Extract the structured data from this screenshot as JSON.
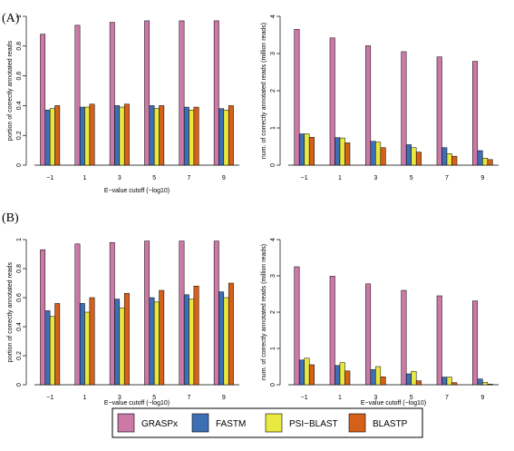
{
  "figure": {
    "panel_labels": [
      "(A)",
      "(B)"
    ],
    "legend": [
      {
        "name": "GRASPx",
        "color": "#cc79a7"
      },
      {
        "name": "FASTM",
        "color": "#3d6fb4"
      },
      {
        "name": "PSI−BLAST",
        "color": "#e8e841"
      },
      {
        "name": "BLASTP",
        "color": "#d5601a"
      }
    ]
  },
  "chart_data": [
    {
      "type": "bar",
      "panel": "(A)",
      "categories": [
        "−1",
        "1",
        "3",
        "5",
        "7",
        "9"
      ],
      "xlabel": "E−value cutoff (−log10)",
      "ylabel": "portion of correctly annotated reads",
      "ylim": [
        0,
        1
      ],
      "yticks": [
        "0",
        "0.2",
        "0.4",
        "0.6",
        "0.8",
        "1"
      ],
      "series": [
        {
          "name": "GRASPx",
          "values": [
            0.88,
            0.94,
            0.96,
            0.97,
            0.97,
            0.97
          ]
        },
        {
          "name": "FASTM",
          "values": [
            0.37,
            0.39,
            0.4,
            0.4,
            0.39,
            0.38
          ]
        },
        {
          "name": "PSI−BLAST",
          "values": [
            0.38,
            0.39,
            0.39,
            0.38,
            0.37,
            0.37
          ]
        },
        {
          "name": "BLASTP",
          "values": [
            0.4,
            0.41,
            0.41,
            0.4,
            0.39,
            0.4
          ]
        }
      ]
    },
    {
      "type": "bar",
      "panel": "(A)",
      "categories": [
        "−1",
        "1",
        "3",
        "5",
        "7",
        "9"
      ],
      "xlabel": "",
      "ylabel": "num. of correctly annotated reads (million reads)",
      "ylim": [
        0,
        4
      ],
      "yticks": [
        "0",
        "1",
        "2",
        "3",
        "4"
      ],
      "series": [
        {
          "name": "GRASPx",
          "values": [
            3.65,
            3.42,
            3.21,
            3.05,
            2.91,
            2.79
          ]
        },
        {
          "name": "FASTM",
          "values": [
            0.84,
            0.74,
            0.64,
            0.55,
            0.47,
            0.39
          ]
        },
        {
          "name": "PSI−BLAST",
          "values": [
            0.84,
            0.73,
            0.62,
            0.47,
            0.31,
            0.19
          ]
        },
        {
          "name": "BLASTP",
          "values": [
            0.75,
            0.6,
            0.47,
            0.35,
            0.24,
            0.15
          ]
        }
      ]
    },
    {
      "type": "bar",
      "panel": "(B)",
      "categories": [
        "−1",
        "1",
        "3",
        "5",
        "7",
        "9"
      ],
      "xlabel": "E−value cutoff (−log10)",
      "ylabel": "portion of correctly annotated reads",
      "ylim": [
        0,
        1
      ],
      "yticks": [
        "0",
        "0.2",
        "0.4",
        "0.6",
        "0.8",
        "1"
      ],
      "series": [
        {
          "name": "GRASPx",
          "values": [
            0.93,
            0.97,
            0.98,
            0.99,
            0.99,
            0.99
          ]
        },
        {
          "name": "FASTM",
          "values": [
            0.51,
            0.56,
            0.59,
            0.6,
            0.62,
            0.64
          ]
        },
        {
          "name": "PSI−BLAST",
          "values": [
            0.47,
            0.5,
            0.53,
            0.57,
            0.59,
            0.6
          ]
        },
        {
          "name": "BLASTP",
          "values": [
            0.56,
            0.6,
            0.63,
            0.65,
            0.68,
            0.7
          ]
        }
      ]
    },
    {
      "type": "bar",
      "panel": "(B)",
      "categories": [
        "−1",
        "1",
        "3",
        "5",
        "7",
        "9"
      ],
      "xlabel": "E−value cutoff (−log10)",
      "ylabel": "num. of correctly annotated reads (million reads)",
      "ylim": [
        0,
        4
      ],
      "yticks": [
        "0",
        "1",
        "2",
        "3",
        "4"
      ],
      "series": [
        {
          "name": "GRASPx",
          "values": [
            3.25,
            2.99,
            2.78,
            2.6,
            2.45,
            2.31
          ]
        },
        {
          "name": "FASTM",
          "values": [
            0.68,
            0.53,
            0.42,
            0.3,
            0.21,
            0.16
          ]
        },
        {
          "name": "PSI−BLAST",
          "values": [
            0.73,
            0.61,
            0.5,
            0.37,
            0.21,
            0.07
          ]
        },
        {
          "name": "BLASTP",
          "values": [
            0.55,
            0.38,
            0.22,
            0.11,
            0.06,
            0.02
          ]
        }
      ]
    }
  ]
}
